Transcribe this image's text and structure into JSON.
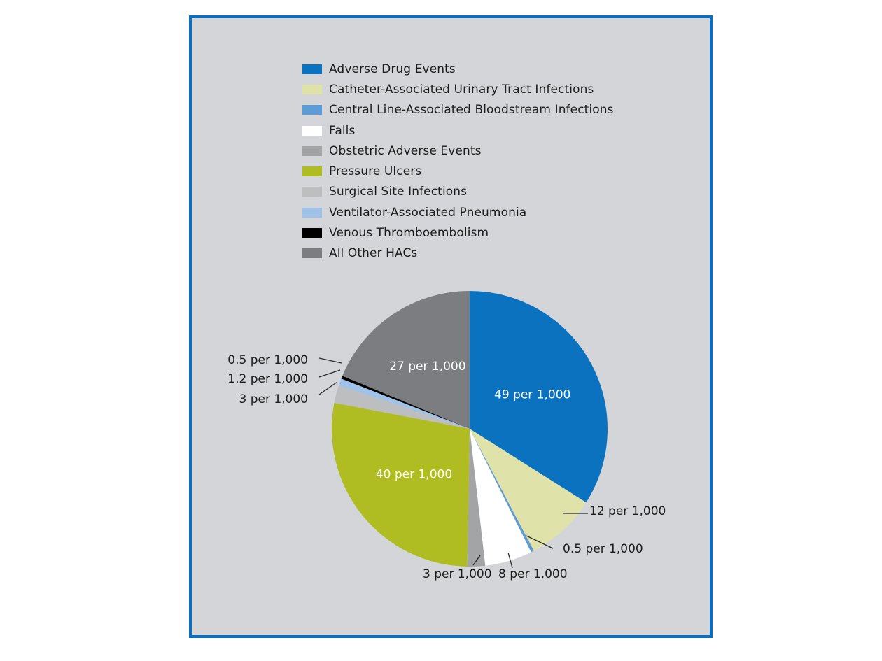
{
  "chart_data": {
    "type": "pie",
    "title": "",
    "legend": [
      {
        "name": "Adverse Drug Events",
        "color": "#0a72bf"
      },
      {
        "name": "Catheter-Associated Urinary Tract Infections",
        "color": "#dfe3a9"
      },
      {
        "name": "Central Line-Associated Bloodstream Infections",
        "color": "#5d9cd6"
      },
      {
        "name": "Falls",
        "color": "#ffffff"
      },
      {
        "name": "Obstetric Adverse Events",
        "color": "#a3a4a6"
      },
      {
        "name": "Pressure Ulcers",
        "color": "#afbd23"
      },
      {
        "name": "Surgical Site Infections",
        "color": "#bdbec0"
      },
      {
        "name": "Ventilator-Associated Pneumonia",
        "color": "#9fc2e8"
      },
      {
        "name": "Venous Thromboembolism",
        "color": "#000000"
      },
      {
        "name": "All Other HACs",
        "color": "#7c7d81"
      }
    ],
    "slices": [
      {
        "name": "Adverse Drug Events",
        "value": 49,
        "label": "49 per 1,000",
        "label_style": "inside",
        "label_color": "#ffffff",
        "color": "#0a72bf"
      },
      {
        "name": "Catheter-Associated Urinary Tract Infections",
        "value": 12,
        "label": "12 per 1,000",
        "label_style": "outside",
        "color": "#dfe3a9"
      },
      {
        "name": "Central Line-Associated Bloodstream Infections",
        "value": 0.5,
        "label": "0.5 per 1,000",
        "label_style": "outside",
        "color": "#5d9cd6"
      },
      {
        "name": "Falls",
        "value": 8,
        "label": "8 per 1,000",
        "label_style": "outside",
        "color": "#ffffff"
      },
      {
        "name": "Obstetric Adverse Events",
        "value": 3,
        "label": "3 per 1,000",
        "label_style": "outside",
        "color": "#a3a4a6"
      },
      {
        "name": "Pressure Ulcers",
        "value": 40,
        "label": "40 per 1,000",
        "label_style": "inside",
        "label_color": "#ffffff",
        "color": "#afbd23"
      },
      {
        "name": "Surgical Site Infections",
        "value": 3,
        "label": "3 per 1,000",
        "label_style": "outside",
        "color": "#bdbec0"
      },
      {
        "name": "Ventilator-Associated Pneumonia",
        "value": 1.2,
        "label": "1.2 per 1,000",
        "label_style": "outside",
        "color": "#9fc2e8"
      },
      {
        "name": "Venous Thromboembolism",
        "value": 0.5,
        "label": "0.5 per 1,000",
        "label_style": "outside",
        "color": "#000000"
      },
      {
        "name": "All Other HACs",
        "value": 27,
        "label": "27 per 1,000",
        "label_style": "inside",
        "label_color": "#ffffff",
        "color": "#7c7d81"
      }
    ],
    "legend_position": "top",
    "start_angle": "12 o'clock",
    "direction": "clockwise"
  },
  "theme": {
    "frame_border": "#0a6fc2",
    "panel_background": "#d4d5d8",
    "leader_line": "#2a2a2a",
    "outside_label_color": "#1c1c1c"
  }
}
